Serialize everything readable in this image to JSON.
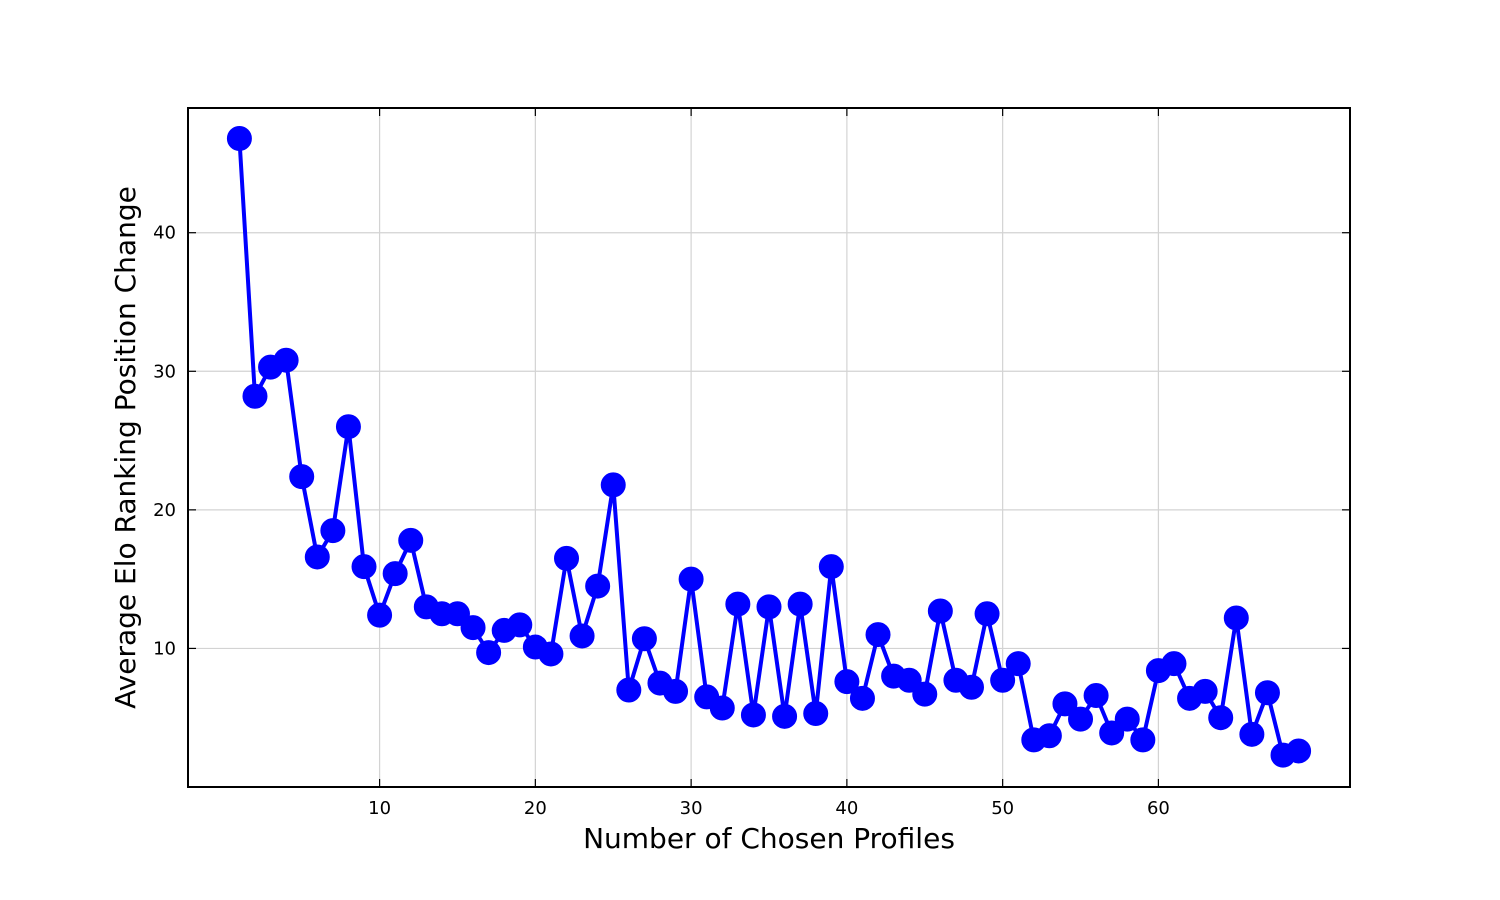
{
  "chart_data": {
    "type": "line",
    "title": "",
    "xlabel": "Number of Chosen Profiles",
    "ylabel": "Average Elo Ranking Position Change",
    "xlim": [
      -2.3,
      72.3
    ],
    "ylim": [
      0,
      49
    ],
    "xticks": [
      10,
      20,
      30,
      40,
      50,
      60
    ],
    "yticks": [
      10,
      20,
      30,
      40
    ],
    "grid": true,
    "legend": "none",
    "series": [
      {
        "color": "#0000ff",
        "marker": "circle",
        "x": [
          1,
          2,
          3,
          4,
          5,
          6,
          7,
          8,
          9,
          10,
          11,
          12,
          13,
          14,
          15,
          16,
          17,
          18,
          19,
          20,
          21,
          22,
          23,
          24,
          25,
          26,
          27,
          28,
          29,
          30,
          31,
          32,
          33,
          34,
          35,
          36,
          37,
          38,
          39,
          40,
          41,
          42,
          43,
          44,
          45,
          46,
          47,
          48,
          49,
          50,
          51,
          52,
          53,
          54,
          55,
          56,
          57,
          58,
          59,
          60,
          61,
          62,
          63,
          64,
          65,
          66,
          67,
          68,
          69
        ],
        "y": [
          46.8,
          28.2,
          30.3,
          30.8,
          22.4,
          16.6,
          18.5,
          26.0,
          15.9,
          12.4,
          15.4,
          17.8,
          13.0,
          12.5,
          12.5,
          11.5,
          9.7,
          11.3,
          11.7,
          10.1,
          9.6,
          16.5,
          10.9,
          14.5,
          21.8,
          7.0,
          10.7,
          7.5,
          6.9,
          15.0,
          6.5,
          5.7,
          13.2,
          5.2,
          13.0,
          5.1,
          13.2,
          5.3,
          15.9,
          7.6,
          6.4,
          11.0,
          8.0,
          7.7,
          6.7,
          12.7,
          7.7,
          7.2,
          12.5,
          7.7,
          8.9,
          3.4,
          3.7,
          6.0,
          4.9,
          6.6,
          3.9,
          4.9,
          3.4,
          8.4,
          8.9,
          6.4,
          6.9,
          5.0,
          12.2,
          3.8,
          6.8,
          2.3,
          2.6
        ]
      }
    ]
  }
}
